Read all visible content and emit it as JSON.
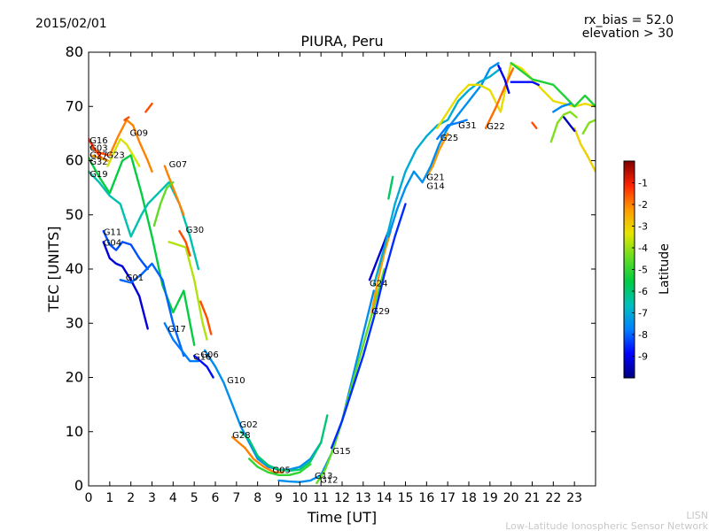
{
  "header": {
    "date": "2015/02/01",
    "params": [
      "rx_bias = 52.0",
      "elevation > 30"
    ]
  },
  "footer": {
    "org_short": "LISN",
    "org_long": "Low-Latitude Ionospheric Sensor Network"
  },
  "chart_data": {
    "type": "line",
    "title": "PIURA, Peru",
    "xlabel": "Time [UT]",
    "ylabel": "TEC [UNITS]",
    "xlim": [
      0,
      24
    ],
    "ylim": [
      0,
      80
    ],
    "xticks": [
      "0",
      "1",
      "2",
      "3",
      "4",
      "5",
      "6",
      "7",
      "8",
      "9",
      "10",
      "11",
      "12",
      "13",
      "14",
      "15",
      "16",
      "17",
      "18",
      "19",
      "20",
      "21",
      "22",
      "23"
    ],
    "yticks": [
      "0",
      "10",
      "20",
      "30",
      "40",
      "50",
      "60",
      "70",
      "80"
    ],
    "grid": false,
    "colorbar": {
      "label": "Latitude",
      "range": [
        -10,
        0
      ],
      "ticks": [
        "-1",
        "-2",
        "-3",
        "-4",
        "-5",
        "-6",
        "-7",
        "-8",
        "-9"
      ],
      "colormap": [
        "#00007f",
        "#0000ff",
        "#007fff",
        "#00bfbf",
        "#00cc44",
        "#66dd22",
        "#e6e600",
        "#ff9900",
        "#ff2200",
        "#7f0000"
      ]
    },
    "series": [
      {
        "name": "G16",
        "lat": -1.2,
        "x": [
          0.0,
          0.3,
          0.6,
          0.9
        ],
        "y": [
          64,
          62,
          60.5,
          60
        ]
      },
      {
        "name": "G03",
        "lat": -1.5,
        "x": [
          0.1,
          0.5,
          0.9
        ],
        "y": [
          62.5,
          61.5,
          61
        ]
      },
      {
        "name": "G27",
        "lat": -2.5,
        "x": [
          0.1,
          0.5,
          0.9
        ],
        "y": [
          61,
          60.5,
          60
        ]
      },
      {
        "name": "G32",
        "lat": -5.5,
        "x": [
          0.0,
          0.5,
          1.0,
          1.6,
          2.0,
          2.5,
          3.0,
          3.5,
          4.0,
          4.5,
          5.0
        ],
        "y": [
          60.5,
          57,
          54,
          60,
          61,
          54,
          46,
          37,
          32,
          36,
          26
        ]
      },
      {
        "name": "G23",
        "lat": -3.5,
        "x": [
          0.9,
          1.2,
          1.5,
          1.8,
          2.1,
          2.4
        ],
        "y": [
          59,
          61.5,
          64,
          63,
          61,
          59
        ]
      },
      {
        "name": "G09",
        "lat": -2.0,
        "x": [
          1.0,
          1.4,
          1.8,
          2.1,
          2.4,
          2.8,
          3.0
        ],
        "y": [
          61,
          64.5,
          67.5,
          66.5,
          63.5,
          60,
          58
        ]
      },
      {
        "name": "G19",
        "lat": -6.5,
        "x": [
          0.0,
          0.5,
          1.0,
          1.5,
          2.0,
          2.5,
          2.8,
          3.3,
          3.8,
          4.3,
          4.8,
          5.2
        ],
        "y": [
          58,
          56,
          53.5,
          52,
          46,
          50,
          52,
          54,
          56,
          52,
          46,
          40
        ]
      },
      {
        "name": "G07",
        "lat": -2.0,
        "x": [
          3.6,
          3.9,
          4.2,
          4.5
        ],
        "y": [
          59,
          56,
          53,
          50
        ]
      },
      {
        "name": "G11",
        "lat": -8.2,
        "x": [
          0.7,
          1.0,
          1.3,
          1.6,
          2.0,
          2.4,
          2.8
        ],
        "y": [
          47,
          44.5,
          43.5,
          45,
          44.5,
          42,
          40
        ]
      },
      {
        "name": "G04",
        "lat": -9.2,
        "x": [
          0.7,
          1.0,
          1.3,
          1.6,
          2.0,
          2.4,
          2.8
        ],
        "y": [
          45,
          42,
          41,
          40.5,
          38,
          35,
          29
        ]
      },
      {
        "name": "G01",
        "lat": -8.0,
        "x": [
          1.5,
          2.0,
          2.5,
          3.0,
          3.5,
          4.0,
          4.5
        ],
        "y": [
          38,
          37.5,
          39,
          41,
          38,
          30,
          24
        ]
      },
      {
        "name": "G30",
        "lat": -3.8,
        "x": [
          3.8,
          4.2,
          4.6,
          5.0,
          5.4,
          5.6
        ],
        "y": [
          45,
          44.5,
          44,
          38,
          30,
          27
        ]
      },
      {
        "name": "G17",
        "lat": -7.8,
        "x": [
          3.6,
          4.0,
          4.4,
          4.8,
          5.2
        ],
        "y": [
          30,
          27,
          25,
          23,
          23
        ]
      },
      {
        "name": "G06",
        "lat": -8.8,
        "x": [
          5.0,
          5.3,
          5.6,
          5.9
        ],
        "y": [
          24,
          23,
          22,
          20
        ]
      },
      {
        "name": "G10",
        "lat": -7.5,
        "x": [
          5.5,
          6.0,
          6.4,
          6.8,
          7.2,
          7.6,
          8.0,
          8.5,
          9.0,
          9.5,
          10.0,
          10.5,
          11.0
        ],
        "y": [
          25,
          22,
          19,
          15,
          11,
          8,
          5,
          3.5,
          3,
          3,
          3.5,
          5,
          8
        ]
      },
      {
        "name": "G02",
        "lat": -6.0,
        "x": [
          7.2,
          7.6,
          8.0,
          8.5,
          9.0,
          9.5,
          10.0,
          10.5,
          11.0,
          11.3
        ],
        "y": [
          10,
          8.5,
          5.5,
          3.8,
          3,
          2.8,
          3,
          4.5,
          8,
          13
        ]
      },
      {
        "name": "G28",
        "lat": -2.0,
        "x": [
          6.8,
          7.1,
          7.4,
          7.8,
          8.3,
          8.8,
          9.2
        ],
        "y": [
          9,
          8,
          7,
          5,
          3.5,
          2.5,
          2.5
        ]
      },
      {
        "name": "G05",
        "lat": -5.0,
        "x": [
          7.6,
          8.0,
          8.5,
          9.0,
          9.5,
          10.0,
          10.5
        ],
        "y": [
          5,
          3.5,
          2.5,
          2,
          2,
          2.5,
          4
        ]
      },
      {
        "name": "G13",
        "lat": -7.5,
        "x": [
          9.0,
          9.5,
          10.0,
          10.5,
          11.0,
          11.5,
          12.0,
          12.5,
          13.0,
          13.5
        ],
        "y": [
          1,
          0.8,
          0.7,
          1,
          2,
          6,
          12,
          20,
          28,
          36
        ]
      },
      {
        "name": "G12",
        "lat": -4.5,
        "x": [
          10.8,
          11.2,
          11.6,
          12.0,
          12.5,
          13.0,
          13.5,
          14.0
        ],
        "y": [
          0.5,
          3,
          7,
          12,
          19,
          26,
          33,
          40
        ]
      },
      {
        "name": "G15",
        "lat": -8.5,
        "x": [
          11.5,
          12.0,
          12.5,
          13.0,
          13.5,
          14.0,
          14.5,
          15.0
        ],
        "y": [
          7,
          12,
          18,
          24,
          31,
          39,
          46,
          52
        ]
      },
      {
        "name": "G24",
        "lat": -9.3,
        "x": [
          13.3,
          13.6,
          13.9,
          14.2
        ],
        "y": [
          38,
          41,
          44,
          47
        ]
      },
      {
        "name": "G29",
        "lat": -2.2,
        "x": [
          13.4,
          13.7,
          14.0,
          14.3
        ],
        "y": [
          32,
          38,
          43,
          47
        ]
      },
      {
        "name": "G21",
        "lat": -2.2,
        "x": [
          16.0,
          16.3,
          16.6,
          17.0
        ],
        "y": [
          57,
          59,
          62,
          65
        ]
      },
      {
        "name": "G14",
        "lat": -7.5,
        "x": [
          14.2,
          14.6,
          15.0,
          15.4,
          15.8,
          16.2,
          16.6,
          17.0,
          17.4,
          17.8,
          18.2,
          18.6,
          19.0,
          19.4
        ],
        "y": [
          46,
          51,
          55,
          58,
          56,
          59,
          63,
          66,
          68,
          70,
          72,
          74,
          77,
          78
        ]
      },
      {
        "name": "G25",
        "lat": -7.0,
        "x": [
          13.5,
          14.0,
          14.5,
          15.0,
          15.5,
          16.0,
          16.5,
          17.0,
          17.5,
          18.0,
          18.5,
          19.0,
          19.5
        ],
        "y": [
          37,
          44,
          52,
          58,
          62,
          64.5,
          66.5,
          67.5,
          71,
          73,
          74.5,
          75.5,
          77
        ]
      },
      {
        "name": "G31",
        "lat": -7.8,
        "x": [
          16.5,
          17.0,
          17.5,
          17.9
        ],
        "y": [
          64,
          66.5,
          67,
          67.5
        ]
      },
      {
        "name": "G22",
        "lat": -3.2,
        "x": [
          16.5,
          17.0,
          17.5,
          18.0,
          18.5,
          19.0,
          19.5,
          20.0,
          20.5,
          21.0,
          21.5,
          22.0,
          22.5,
          23.0,
          23.5,
          24.0
        ],
        "y": [
          66,
          69,
          72,
          74,
          74,
          73,
          69,
          78,
          77,
          75,
          73,
          71,
          70.5,
          70,
          70.5,
          70
        ]
      },
      {
        "name": "",
        "lat": -1.8,
        "x": [
          18.8,
          19.3,
          19.8,
          20.1
        ],
        "y": [
          66,
          70,
          74.5,
          77
        ]
      },
      {
        "name": "",
        "lat": -5.2,
        "x": [
          20.0,
          20.5,
          21.0,
          21.5,
          22.0,
          22.5,
          23.0,
          23.5,
          24.0
        ],
        "y": [
          78,
          76.5,
          75,
          74.5,
          74,
          72,
          70,
          72,
          70
        ]
      },
      {
        "name": "",
        "lat": -9.0,
        "x": [
          19.4,
          19.7,
          19.9
        ],
        "y": [
          77.5,
          75,
          72.5
        ]
      },
      {
        "name": "",
        "lat": -8.8,
        "x": [
          20.0,
          20.5,
          21.0,
          21.3
        ],
        "y": [
          74.5,
          74.5,
          74.5,
          74
        ]
      },
      {
        "name": "",
        "lat": -1.5,
        "x": [
          21.0,
          21.2
        ],
        "y": [
          67,
          66
        ]
      },
      {
        "name": "",
        "lat": -4.2,
        "x": [
          21.9,
          22.2,
          22.5,
          22.8,
          23.1
        ],
        "y": [
          63.5,
          67,
          68.5,
          69,
          68
        ]
      },
      {
        "name": "",
        "lat": -3.0,
        "x": [
          23.0,
          23.3,
          23.6,
          24.0
        ],
        "y": [
          66,
          63,
          61,
          58
        ]
      },
      {
        "name": "",
        "lat": -7.6,
        "x": [
          22.0,
          22.4,
          22.8
        ],
        "y": [
          69,
          70,
          70.5
        ]
      },
      {
        "name": "",
        "lat": -9.5,
        "x": [
          22.5,
          22.8,
          23.0
        ],
        "y": [
          68,
          66.5,
          65.5
        ]
      },
      {
        "name": "",
        "lat": -4.2,
        "x": [
          23.4,
          23.7,
          24.0
        ],
        "y": [
          65,
          67,
          67.5
        ]
      },
      {
        "name": "",
        "lat": -1.5,
        "x": [
          1.7,
          1.9
        ],
        "y": [
          67.5,
          68
        ]
      },
      {
        "name": "",
        "lat": -1.5,
        "x": [
          2.7,
          3.0
        ],
        "y": [
          69,
          70.5
        ]
      },
      {
        "name": "",
        "lat": -4.5,
        "x": [
          3.1,
          3.4,
          3.7,
          4.0
        ],
        "y": [
          48,
          52,
          55,
          56
        ]
      },
      {
        "name": "",
        "lat": -1.5,
        "x": [
          4.3,
          4.6,
          4.8
        ],
        "y": [
          47,
          45,
          42.5
        ]
      },
      {
        "name": "",
        "lat": -1.5,
        "x": [
          5.3,
          5.6,
          5.8
        ],
        "y": [
          34,
          31,
          28
        ]
      },
      {
        "name": "",
        "lat": -5.8,
        "x": [
          14.2,
          14.4
        ],
        "y": [
          53,
          57
        ]
      }
    ],
    "annotations": [
      {
        "text": "G16",
        "x": 0.05,
        "y": 63.2
      },
      {
        "text": "G03",
        "x": 0.05,
        "y": 61.8
      },
      {
        "text": "G27",
        "x": 0.05,
        "y": 60.5
      },
      {
        "text": "G23",
        "x": 0.85,
        "y": 60.5
      },
      {
        "text": "G32",
        "x": 0.05,
        "y": 59.3
      },
      {
        "text": "G09",
        "x": 1.95,
        "y": 64.6
      },
      {
        "text": "G07",
        "x": 3.8,
        "y": 58.8
      },
      {
        "text": "G19",
        "x": 0.05,
        "y": 57.0
      },
      {
        "text": "G11",
        "x": 0.7,
        "y": 46.3
      },
      {
        "text": "G04",
        "x": 0.7,
        "y": 44.3
      },
      {
        "text": "G30",
        "x": 4.6,
        "y": 46.7
      },
      {
        "text": "G01",
        "x": 1.75,
        "y": 37.9
      },
      {
        "text": "G17",
        "x": 3.75,
        "y": 28.4
      },
      {
        "text": "G06",
        "x": 5.3,
        "y": 23.7
      },
      {
        "text": "G16",
        "x": 4.95,
        "y": 23.3
      },
      {
        "text": "G10",
        "x": 6.55,
        "y": 18.9
      },
      {
        "text": "G02",
        "x": 7.15,
        "y": 10.8
      },
      {
        "text": "G28",
        "x": 6.8,
        "y": 8.8
      },
      {
        "text": "G05",
        "x": 8.7,
        "y": 2.4
      },
      {
        "text": "G13",
        "x": 10.7,
        "y": 1.3
      },
      {
        "text": "G12",
        "x": 10.95,
        "y": 0.6
      },
      {
        "text": "G15",
        "x": 11.55,
        "y": 5.9
      },
      {
        "text": "G24",
        "x": 13.3,
        "y": 36.8
      },
      {
        "text": "G29",
        "x": 13.4,
        "y": 31.7
      },
      {
        "text": "G21",
        "x": 16.0,
        "y": 56.4
      },
      {
        "text": "G14",
        "x": 16.0,
        "y": 54.8
      },
      {
        "text": "G25",
        "x": 16.65,
        "y": 63.7
      },
      {
        "text": "G31",
        "x": 17.5,
        "y": 66.0
      },
      {
        "text": "G22",
        "x": 18.85,
        "y": 65.8
      }
    ]
  }
}
